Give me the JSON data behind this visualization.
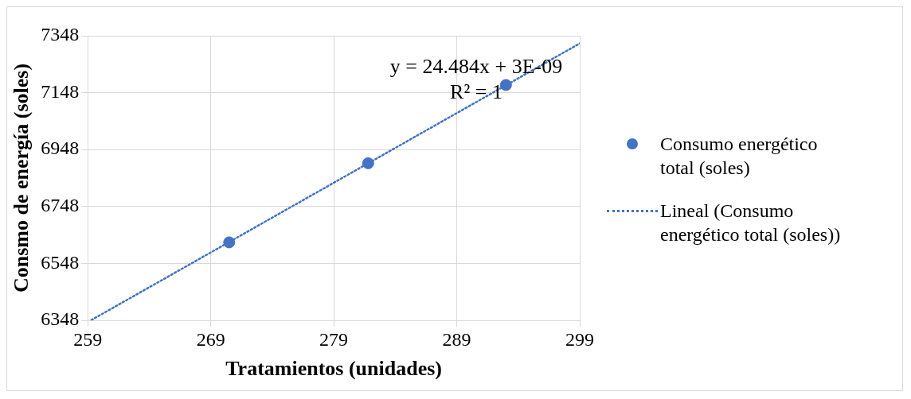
{
  "chart_data": {
    "type": "scatter",
    "xlabel": "Tratamientos (unidades)",
    "ylabel": "Consmo de energía (soles)",
    "xlim": [
      259,
      299
    ],
    "xticks": [
      259,
      269,
      279,
      289,
      299
    ],
    "ylim": [
      6348,
      7348
    ],
    "yticks": [
      6348,
      6548,
      6748,
      6948,
      7148,
      7348
    ],
    "grid": true,
    "legend": "right",
    "marker": "circle",
    "annotations": [
      "y = 24.484x + 3E-09",
      "R² = 1"
    ],
    "series": [
      {
        "name": "Consumo energético total (soles)",
        "type": "scatter",
        "color": "#4472c4",
        "x": [
          270.5,
          281.8,
          293.0
        ],
        "values": [
          6622,
          6900,
          7175
        ]
      },
      {
        "name": "Lineal (Consumo energético total (soles))",
        "type": "line",
        "color": "#4472c4",
        "line_style": "dotted",
        "marker": "none",
        "x": [
          259.3,
          299
        ],
        "values": [
          6349,
          7321
        ]
      }
    ]
  }
}
